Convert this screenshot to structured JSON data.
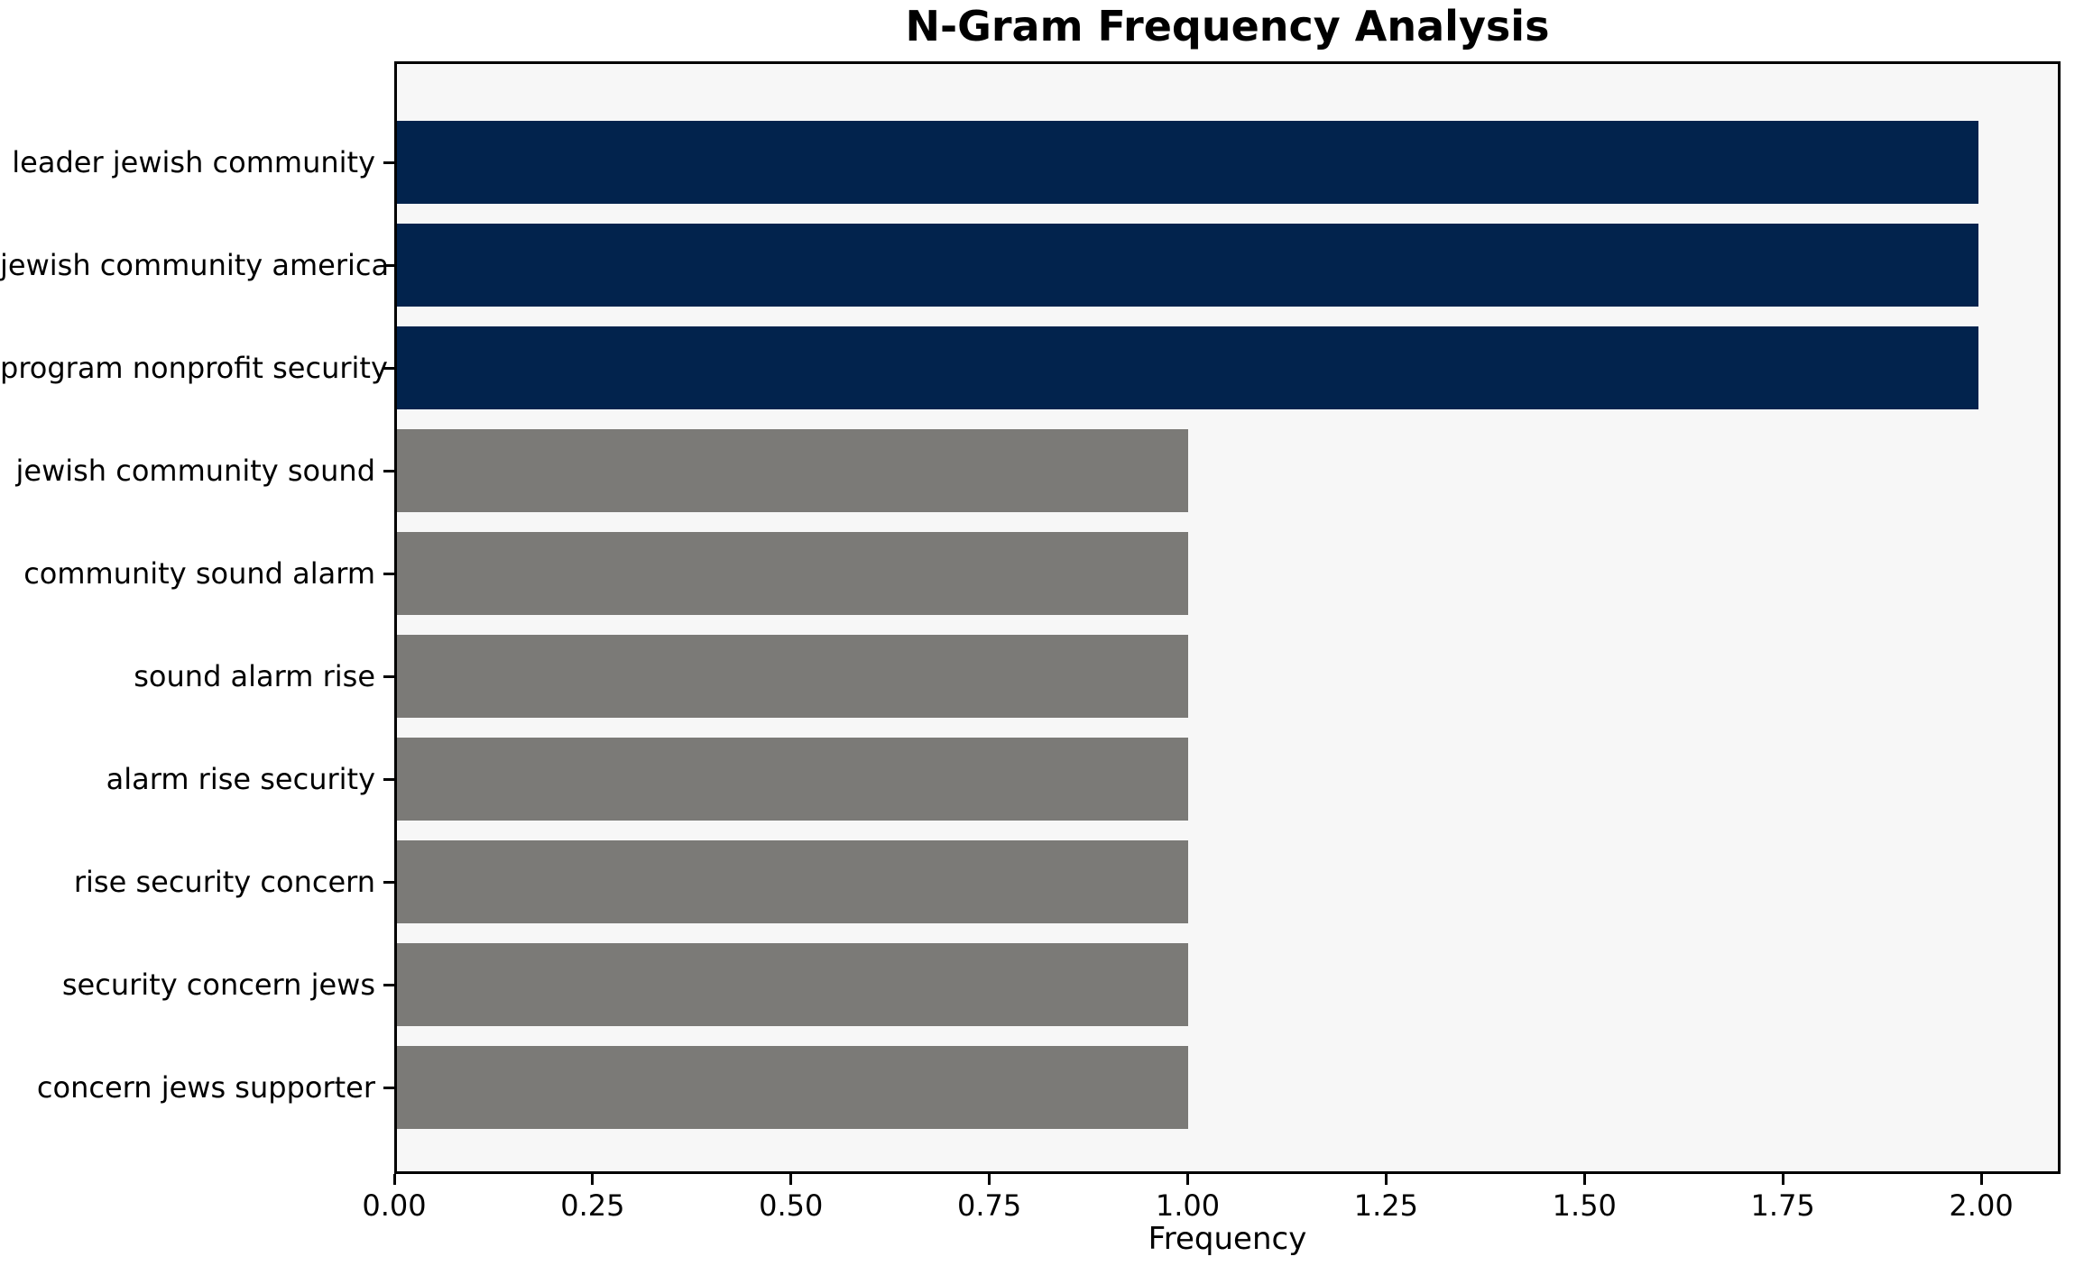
{
  "chart_data": {
    "type": "bar",
    "orientation": "horizontal",
    "title": "N-Gram Frequency Analysis",
    "xlabel": "Frequency",
    "ylabel": "",
    "categories": [
      "leader jewish community",
      "jewish community america",
      "program nonprofit security",
      "jewish community sound",
      "community sound alarm",
      "sound alarm rise",
      "alarm rise security",
      "rise security concern",
      "security concern jews",
      "concern jews supporter"
    ],
    "values": [
      2,
      2,
      2,
      1,
      1,
      1,
      1,
      1,
      1,
      1
    ],
    "bar_colors": [
      "#02234d",
      "#02234d",
      "#02234d",
      "#7b7a77",
      "#7b7a77",
      "#7b7a77",
      "#7b7a77",
      "#7b7a77",
      "#7b7a77",
      "#7b7a77"
    ],
    "xlim": [
      0,
      2.1
    ],
    "xticks": {
      "values": [
        0,
        0.25,
        0.5,
        0.75,
        1.0,
        1.25,
        1.5,
        1.75,
        2.0
      ],
      "labels": [
        "0.00",
        "0.25",
        "0.50",
        "0.75",
        "1.00",
        "1.25",
        "1.50",
        "1.75",
        "2.00"
      ]
    },
    "grid": false,
    "legend": null,
    "colors": {
      "highlight": "#02234d",
      "default": "#7b7a77",
      "plot_background": "#f7f7f7",
      "figure_background": "#ffffff",
      "axis": "#000000"
    }
  }
}
